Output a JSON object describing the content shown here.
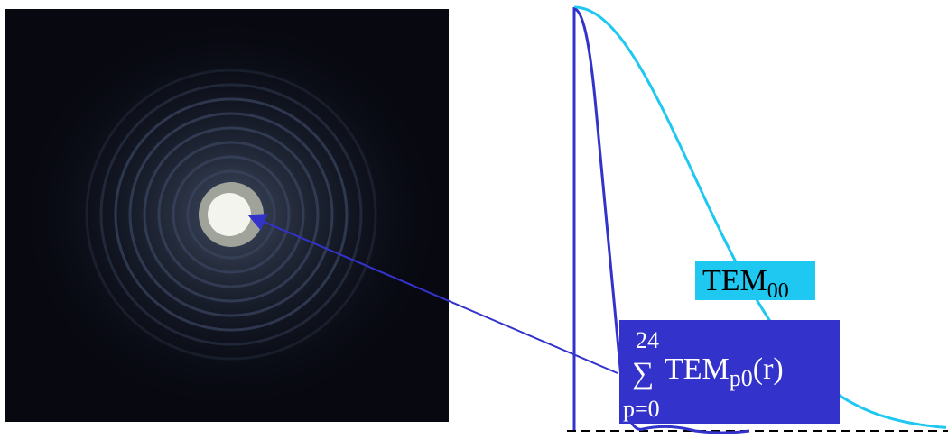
{
  "labels": {
    "gaussian": {
      "main": "TEM",
      "sub": "00"
    },
    "sum": {
      "upper": "24",
      "symbol": "∑",
      "main": "TEM",
      "sub": "p0",
      "arg": "(r)",
      "lower": "p=0"
    }
  }
}
